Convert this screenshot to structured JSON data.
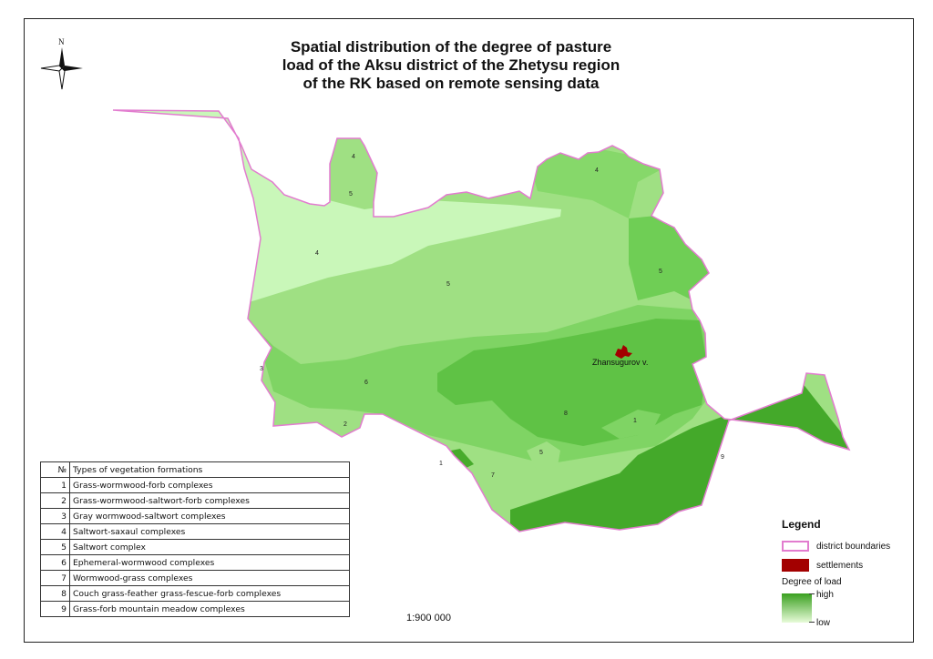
{
  "title": "Spatial distribution of the degree of pasture load of the Aksu district of the Zhetysu region of the RK based on remote sensing data",
  "north_label": "N",
  "scale_text": "1:900 000",
  "settlement": {
    "name": "Zhansugurov v."
  },
  "region_labels": [
    {
      "id": "a",
      "text": "4"
    },
    {
      "id": "b",
      "text": "5"
    },
    {
      "id": "c",
      "text": "4"
    },
    {
      "id": "d",
      "text": "4"
    },
    {
      "id": "e",
      "text": "5"
    },
    {
      "id": "f",
      "text": "5"
    },
    {
      "id": "g",
      "text": "3"
    },
    {
      "id": "h",
      "text": "6"
    },
    {
      "id": "i",
      "text": "2"
    },
    {
      "id": "j",
      "text": "8"
    },
    {
      "id": "k",
      "text": "1"
    },
    {
      "id": "l",
      "text": "5"
    },
    {
      "id": "m",
      "text": "1"
    },
    {
      "id": "n",
      "text": "7"
    },
    {
      "id": "o",
      "text": "9"
    }
  ],
  "legend": {
    "title": "Legend",
    "district_boundaries": "district boundaries",
    "settlements": "settlements",
    "degree_title": "Degree of load",
    "high": "high",
    "low": "low"
  },
  "colors": {
    "boundary": "#e27ccf",
    "settlement": "#a30000",
    "load_high": "#3aa020",
    "load_low": "#e7fbd8"
  },
  "table": {
    "header": {
      "num": "№",
      "name": "Types of vegetation formations"
    },
    "rows": [
      {
        "num": "1",
        "name": "Grass-wormwood-forb complexes"
      },
      {
        "num": "2",
        "name": "Grass-wormwood-saltwort-forb complexes"
      },
      {
        "num": "3",
        "name": "Gray wormwood-saltwort complexes"
      },
      {
        "num": "4",
        "name": "Saltwort-saxaul complexes"
      },
      {
        "num": "5",
        "name": "Saltwort complex"
      },
      {
        "num": "6",
        "name": "Ephemeral-wormwood complexes"
      },
      {
        "num": "7",
        "name": "Wormwood-grass complexes"
      },
      {
        "num": "8",
        "name": "Couch grass-feather grass-fescue-forb complexes"
      },
      {
        "num": "9",
        "name": "Grass-forb mountain meadow complexes"
      }
    ]
  }
}
